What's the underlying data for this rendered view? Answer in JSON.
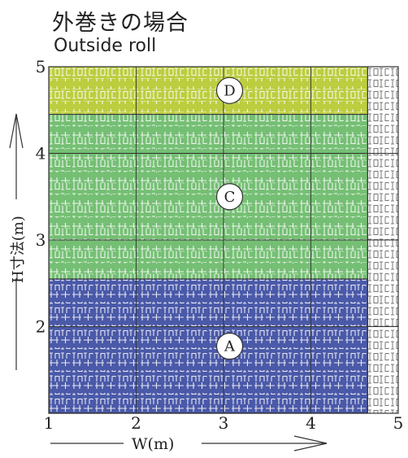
{
  "title": "外巻きの場合",
  "subtitle": "Outside roll",
  "chart_data": {
    "type": "heatmap",
    "title": "外巻きの場合",
    "subtitle": "Outside roll",
    "xlabel": "W(m)",
    "ylabel": "H寸法(m)",
    "xlim": [
      1,
      5
    ],
    "ylim": [
      1,
      5
    ],
    "x_ticks": [
      "1",
      "2",
      "3",
      "4",
      "5"
    ],
    "y_ticks": [
      "1",
      "2",
      "3",
      "4",
      "5"
    ],
    "grid": true,
    "regions": [
      {
        "label": "A",
        "x": [
          1,
          4.65
        ],
        "y": [
          1,
          2.55
        ],
        "color": "#4a59a8"
      },
      {
        "label": "C",
        "x": [
          1,
          4.65
        ],
        "y": [
          2.55,
          4.45
        ],
        "color": "#75bf74"
      },
      {
        "label": "D",
        "x": [
          1,
          4.65
        ],
        "y": [
          4.45,
          5
        ],
        "color": "#bccd3f"
      }
    ],
    "unavailable_region": {
      "x": [
        4.65,
        5
      ],
      "y": [
        1,
        5
      ],
      "color": "#ffffff"
    }
  }
}
